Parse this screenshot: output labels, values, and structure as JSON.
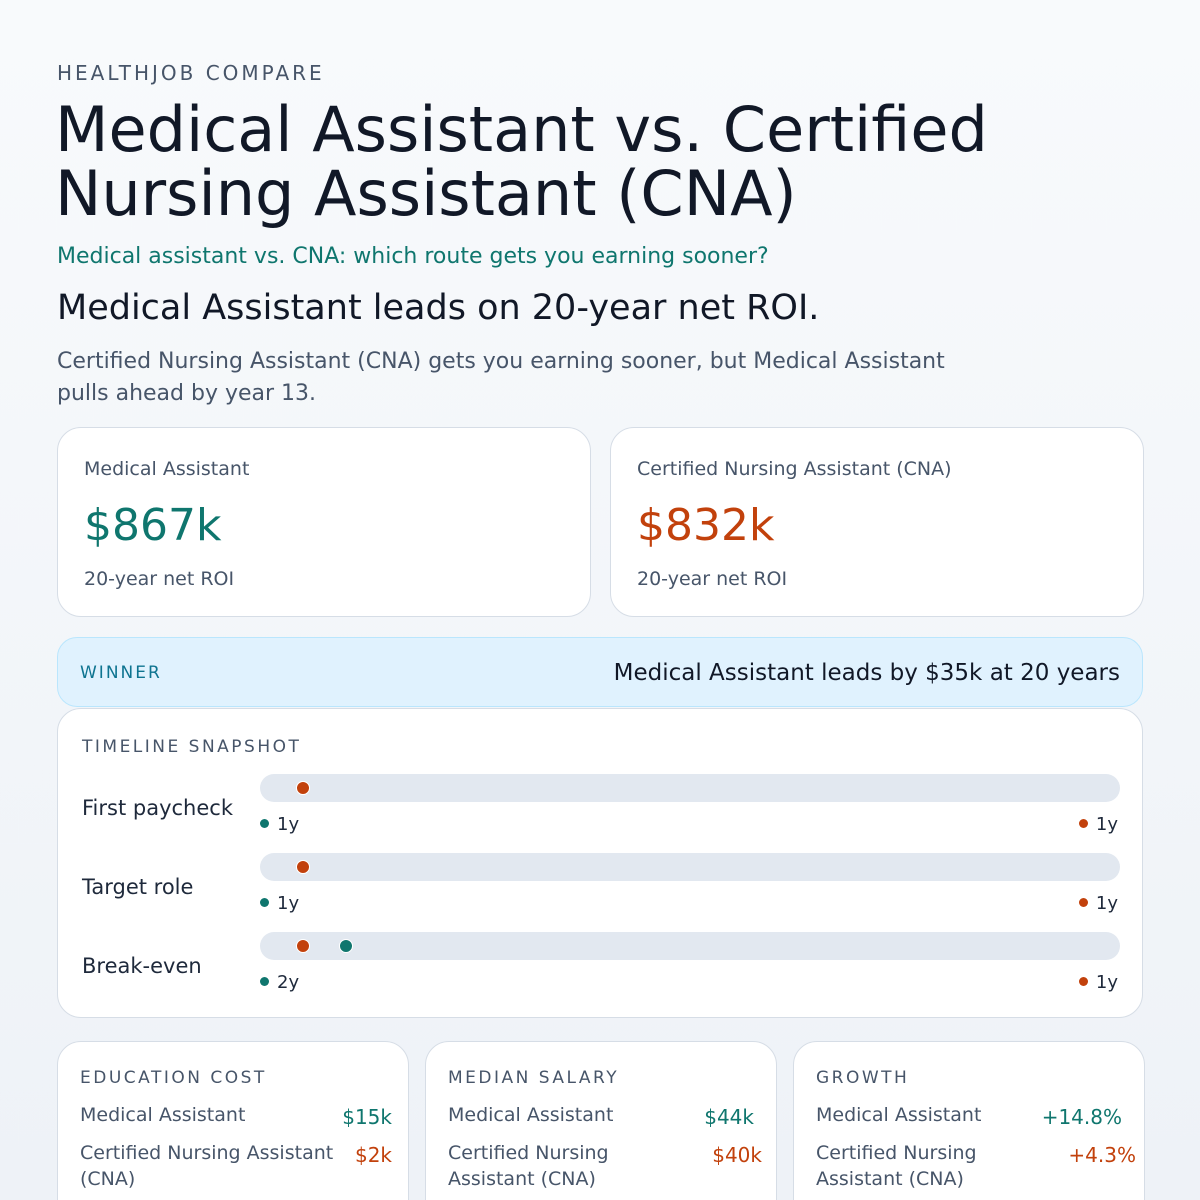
{
  "brand": "HEALTHJOB COMPARE",
  "title": "Medical Assistant vs. Certified Nursing Assistant (CNA)",
  "subtitle": "Medical assistant vs. CNA: which route gets you earning sooner?",
  "headline": "Medical Assistant leads on 20-year net ROI.",
  "summary": "Certified Nursing Assistant (CNA) gets you earning sooner, but Medical Assistant pulls ahead by year 13.",
  "colors": {
    "medical_assistant": "#0f766e",
    "cna": "#c2410c",
    "winner_bg": "#e0f2fe"
  },
  "roi": [
    {
      "label": "Medical Assistant",
      "value": "$867k",
      "sub": "20-year net ROI"
    },
    {
      "label": "Certified Nursing Assistant (CNA)",
      "value": "$832k",
      "sub": "20-year net ROI"
    }
  ],
  "winner": {
    "label": "WINNER",
    "text": "Medical Assistant leads by $35k at 20 years"
  },
  "timeline": {
    "label": "TIMELINE SNAPSHOT",
    "scale_max_years": 20,
    "rows": [
      {
        "name": "First paycheck",
        "ma_years": 1,
        "cna_years": 1,
        "ma_label": "1y",
        "cna_label": "1y"
      },
      {
        "name": "Target role",
        "ma_years": 1,
        "cna_years": 1,
        "ma_label": "1y",
        "cna_label": "1y"
      },
      {
        "name": "Break-even",
        "ma_years": 2,
        "cna_years": 1,
        "ma_label": "2y",
        "cna_label": "1y"
      }
    ]
  },
  "metrics": [
    {
      "label": "EDUCATION COST",
      "ma_name": "Medical Assistant",
      "ma_value": "$15k",
      "cna_name": "Certified Nursing Assistant (CNA)",
      "cna_value": "$2k"
    },
    {
      "label": "MEDIAN SALARY",
      "ma_name": "Medical Assistant",
      "ma_value": "$44k",
      "cna_name": "Certified Nursing Assistant (CNA)",
      "cna_value": "$40k"
    },
    {
      "label": "GROWTH",
      "ma_name": "Medical Assistant",
      "ma_value": "+14.8%",
      "cna_name": "Certified Nursing Assistant (CNA)",
      "cna_value": "+4.3%"
    }
  ]
}
